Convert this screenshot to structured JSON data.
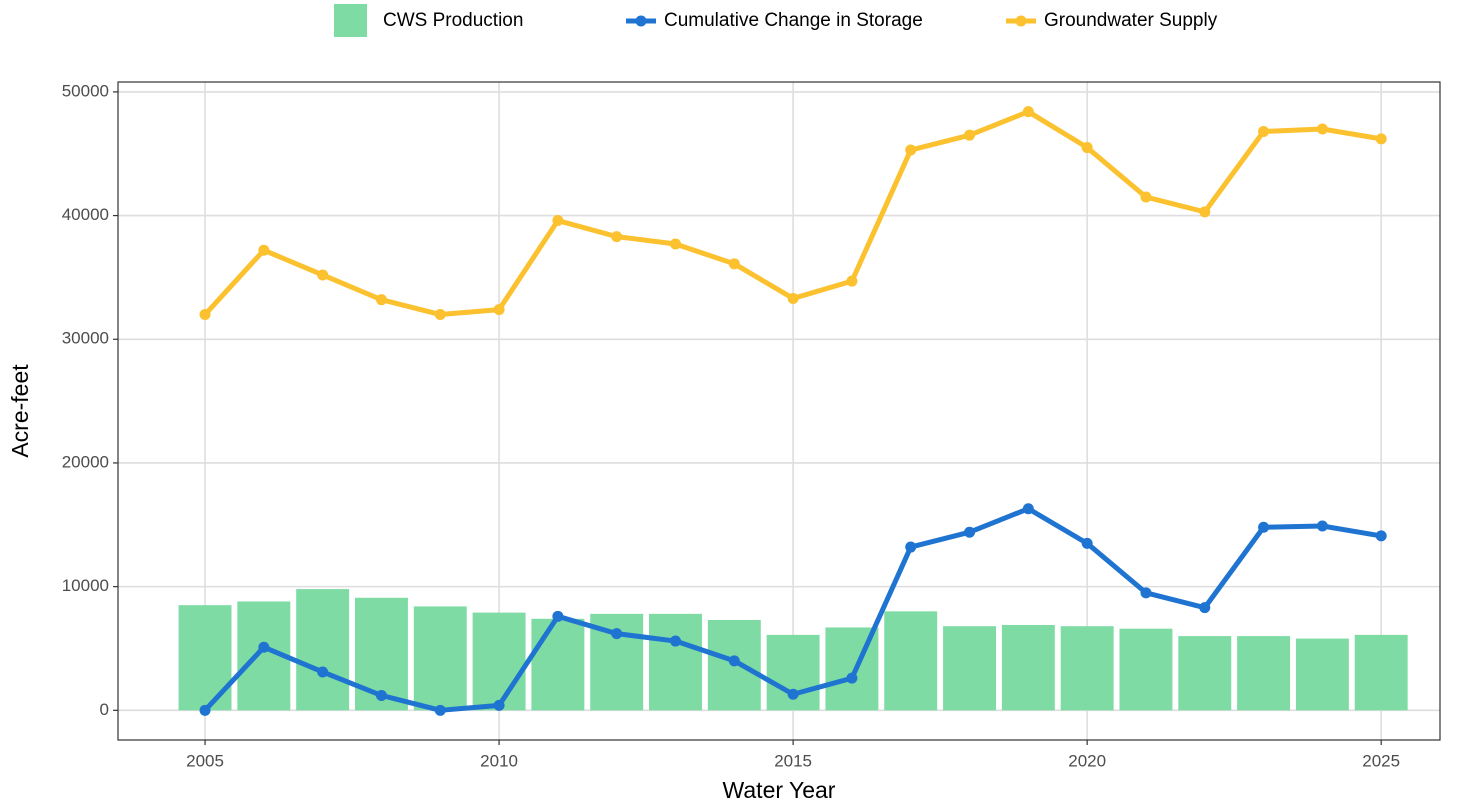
{
  "chart_data": {
    "type": "combo",
    "xlabel": "Water Year",
    "ylabel": "Acre-feet",
    "x": [
      2005,
      2006,
      2007,
      2008,
      2009,
      2010,
      2011,
      2012,
      2013,
      2014,
      2015,
      2016,
      2017,
      2018,
      2019,
      2020,
      2021,
      2022,
      2023,
      2024,
      2025
    ],
    "series": [
      {
        "name": "CWS Production",
        "type": "bar",
        "color": "#7ddba3",
        "values": [
          8500,
          8800,
          9800,
          9100,
          8400,
          7900,
          7400,
          7800,
          7800,
          7300,
          6100,
          6700,
          8000,
          6800,
          6900,
          6800,
          6600,
          6000,
          6000,
          5800,
          6100
        ]
      },
      {
        "name": "Cumulative Change in Storage",
        "type": "line",
        "color": "#1f74d1",
        "values": [
          0,
          5100,
          3100,
          1200,
          0,
          400,
          7600,
          6200,
          5600,
          4000,
          1300,
          2600,
          13200,
          14400,
          16300,
          13500,
          9500,
          8300,
          14800,
          14900,
          14100
        ]
      },
      {
        "name": "Groundwater Supply",
        "type": "line",
        "color": "#fbc12e",
        "values": [
          32000,
          37200,
          35200,
          33200,
          32000,
          32400,
          39600,
          38300,
          37700,
          36100,
          33300,
          34700,
          45300,
          46500,
          48400,
          45500,
          41500,
          40300,
          46800,
          47000,
          46200
        ]
      }
    ],
    "xlim": [
      2003.52,
      2026.0
    ],
    "ylim": [
      -2400,
      50800
    ],
    "xticks": [
      2005,
      2010,
      2015,
      2020,
      2025
    ],
    "yticks": [
      0,
      10000,
      20000,
      30000,
      40000,
      50000
    ],
    "grid": true,
    "legend": "top"
  }
}
